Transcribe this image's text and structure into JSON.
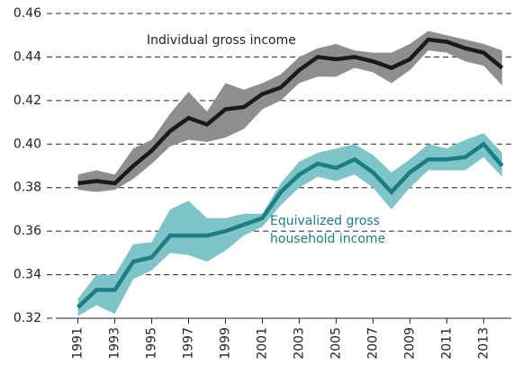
{
  "chart_data": {
    "type": "band-line",
    "x": [
      1991,
      1992,
      1993,
      1994,
      1995,
      1996,
      1997,
      1998,
      1999,
      2000,
      2001,
      2002,
      2003,
      2004,
      2005,
      2006,
      2007,
      2008,
      2009,
      2010,
      2011,
      2012,
      2013,
      2014
    ],
    "series": [
      {
        "label_lines": [
          "Individual gross income"
        ],
        "color": "#1a1a1a",
        "band_color": "#8e8e8e",
        "values": [
          0.382,
          0.383,
          0.382,
          0.39,
          0.397,
          0.406,
          0.412,
          0.409,
          0.416,
          0.417,
          0.423,
          0.426,
          0.434,
          0.44,
          0.439,
          0.44,
          0.438,
          0.435,
          0.439,
          0.448,
          0.447,
          0.444,
          0.442,
          0.435
        ],
        "upper": [
          0.386,
          0.388,
          0.386,
          0.398,
          0.402,
          0.414,
          0.424,
          0.415,
          0.428,
          0.425,
          0.428,
          0.432,
          0.44,
          0.444,
          0.446,
          0.443,
          0.442,
          0.442,
          0.446,
          0.452,
          0.45,
          0.448,
          0.446,
          0.443
        ],
        "lower": [
          0.379,
          0.378,
          0.379,
          0.384,
          0.391,
          0.399,
          0.402,
          0.401,
          0.403,
          0.407,
          0.416,
          0.42,
          0.428,
          0.431,
          0.431,
          0.435,
          0.433,
          0.428,
          0.434,
          0.443,
          0.442,
          0.438,
          0.436,
          0.427
        ]
      },
      {
        "label_lines": [
          "Equivalized gross",
          "household income"
        ],
        "color": "#1b7e80",
        "band_color": "#7fc4c8",
        "values": [
          0.325,
          0.333,
          0.333,
          0.346,
          0.348,
          0.358,
          0.358,
          0.358,
          0.36,
          0.363,
          0.366,
          0.378,
          0.386,
          0.391,
          0.389,
          0.393,
          0.387,
          0.378,
          0.387,
          0.393,
          0.393,
          0.394,
          0.4,
          0.39
        ],
        "upper": [
          0.329,
          0.34,
          0.34,
          0.354,
          0.355,
          0.37,
          0.374,
          0.366,
          0.366,
          0.368,
          0.368,
          0.382,
          0.392,
          0.396,
          0.398,
          0.4,
          0.395,
          0.387,
          0.393,
          0.4,
          0.398,
          0.402,
          0.405,
          0.396
        ],
        "lower": [
          0.321,
          0.326,
          0.322,
          0.338,
          0.342,
          0.35,
          0.349,
          0.346,
          0.351,
          0.358,
          0.362,
          0.372,
          0.38,
          0.385,
          0.383,
          0.386,
          0.38,
          0.37,
          0.38,
          0.388,
          0.388,
          0.388,
          0.394,
          0.385
        ]
      }
    ],
    "xlim": [
      1989.8,
      2014.5
    ],
    "xticks": [
      1991,
      1993,
      1995,
      1997,
      1999,
      2001,
      2003,
      2005,
      2007,
      2009,
      2011,
      2013
    ],
    "ylim": [
      0.32,
      0.46
    ],
    "yticks": [
      {
        "value": 0.32,
        "label": "0.32"
      },
      {
        "value": 0.34,
        "label": "0.34"
      },
      {
        "value": 0.36,
        "label": "0.36"
      },
      {
        "value": 0.38,
        "label": "0.38"
      },
      {
        "value": 0.4,
        "label": "0.40"
      },
      {
        "value": 0.42,
        "label": "0.42"
      },
      {
        "value": 0.44,
        "label": "0.44"
      },
      {
        "value": 0.46,
        "label": "0.46"
      }
    ],
    "grid": true
  }
}
